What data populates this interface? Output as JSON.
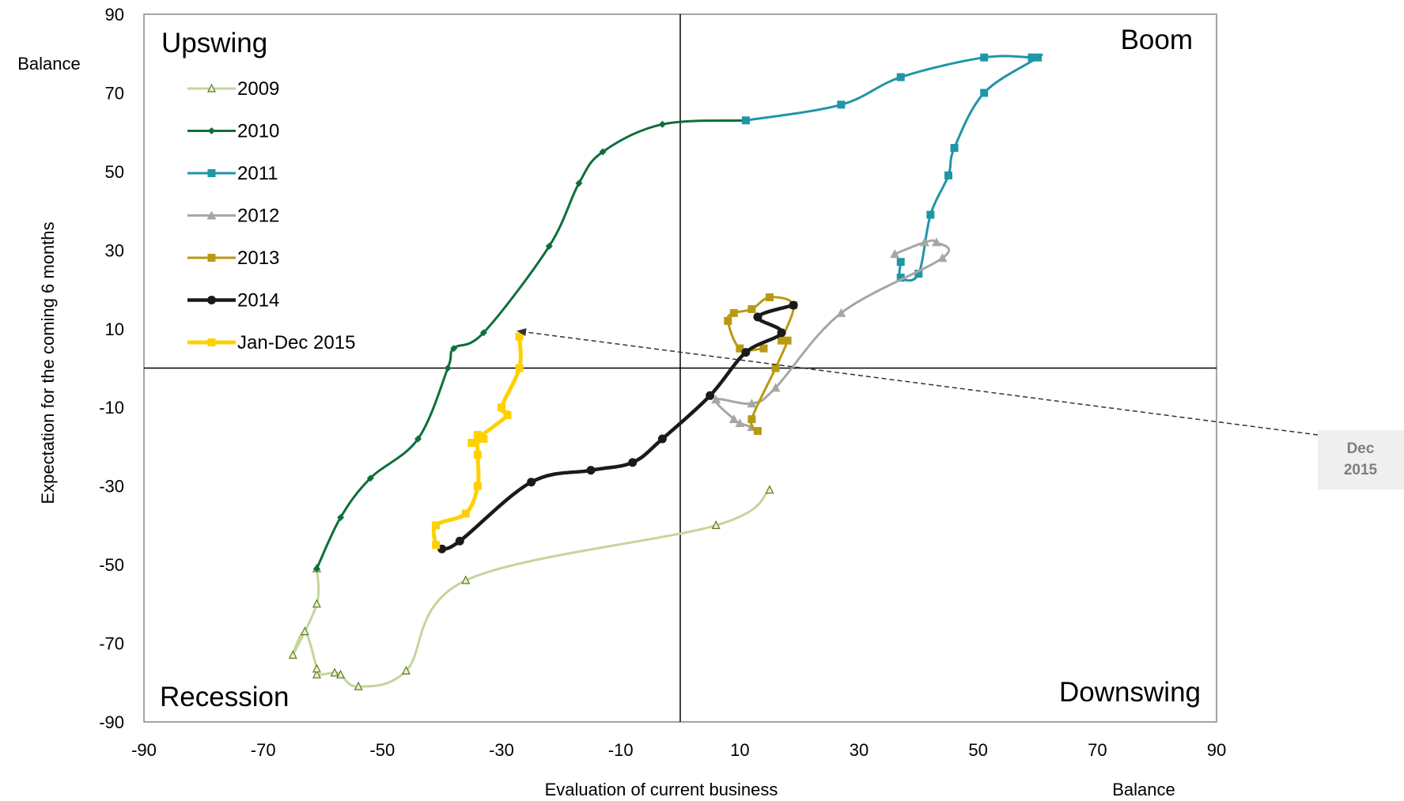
{
  "chart_data": {
    "type": "line",
    "xlabel": "Evaluation  of current business",
    "xunit": "Balance",
    "ylabel": "Expectation for the coming 6 months",
    "yunit": "Balance",
    "xlim": [
      -90,
      90
    ],
    "ylim": [
      -90,
      90
    ],
    "xticks": [
      "-90",
      "-70",
      "-50",
      "-30",
      "-10",
      "10",
      "30",
      "50",
      "70",
      "90"
    ],
    "yticks": [
      "90",
      "70",
      "50",
      "30",
      "10",
      "-10",
      "-30",
      "-50",
      "-70",
      "-90"
    ],
    "quadrants": {
      "top_left": "Upswing",
      "top_right": "Boom",
      "bottom_left": "Recession",
      "bottom_right": "Downswing"
    },
    "annotation": {
      "text_line1": "Dec",
      "text_line2": "2015",
      "points_to": [
        -28,
        9
      ]
    },
    "legend_position": "top-left",
    "series": [
      {
        "name": "2009",
        "color": "#c3d69b",
        "marker": "triangle-open",
        "points": [
          [
            15,
            -31
          ],
          [
            6,
            -40
          ],
          [
            -36,
            -54
          ],
          [
            -46,
            -77
          ],
          [
            -54,
            -81
          ],
          [
            -57,
            -78
          ],
          [
            -58,
            -77.5
          ],
          [
            -61,
            -78
          ],
          [
            -61,
            -76.5
          ],
          [
            -63,
            -67
          ],
          [
            -65,
            -73
          ],
          [
            -61,
            -60
          ],
          [
            -61,
            -51
          ]
        ]
      },
      {
        "name": "2010",
        "color": "#0f6e3a",
        "marker": "diamond",
        "points": [
          [
            -61,
            -51
          ],
          [
            -57,
            -38
          ],
          [
            -52,
            -28
          ],
          [
            -44,
            -18
          ],
          [
            -39,
            0
          ],
          [
            -38,
            5
          ],
          [
            -33,
            9
          ],
          [
            -22,
            31
          ],
          [
            -17,
            47
          ],
          [
            -13,
            55
          ],
          [
            -3,
            62
          ],
          [
            11,
            63
          ]
        ]
      },
      {
        "name": "2011",
        "color": "#1f95a8",
        "marker": "square",
        "points": [
          [
            11,
            63
          ],
          [
            27,
            67
          ],
          [
            37,
            74
          ],
          [
            51,
            79
          ],
          [
            59,
            79
          ],
          [
            60,
            79
          ],
          [
            51,
            70
          ],
          [
            46,
            56
          ],
          [
            45,
            49
          ],
          [
            42,
            39
          ],
          [
            40,
            24
          ],
          [
            37,
            23
          ],
          [
            37,
            27
          ]
        ]
      },
      {
        "name": "2012",
        "color": "#a6a6a6",
        "marker": "triangle",
        "points": [
          [
            36,
            29
          ],
          [
            41,
            32
          ],
          [
            43,
            32
          ],
          [
            44,
            28
          ],
          [
            27,
            14
          ],
          [
            16,
            -5
          ],
          [
            12,
            -9
          ],
          [
            6,
            -8
          ],
          [
            9,
            -13
          ],
          [
            10,
            -14
          ],
          [
            12,
            -15
          ]
        ]
      },
      {
        "name": "2013",
        "color": "#b89a12",
        "marker": "square",
        "points": [
          [
            13,
            -16
          ],
          [
            12,
            -13
          ],
          [
            16,
            0
          ],
          [
            18,
            7
          ],
          [
            17,
            7
          ],
          [
            19,
            16
          ],
          [
            15,
            18
          ],
          [
            12,
            15
          ],
          [
            9,
            14
          ],
          [
            8,
            12
          ],
          [
            10,
            5
          ],
          [
            14,
            5
          ]
        ]
      },
      {
        "name": "2014",
        "color": "#1a1a18",
        "marker": "circle",
        "points": [
          [
            19,
            16
          ],
          [
            13,
            13
          ],
          [
            17,
            9
          ],
          [
            11,
            4
          ],
          [
            5,
            -7
          ],
          [
            -3,
            -18
          ],
          [
            -8,
            -24
          ],
          [
            -15,
            -26
          ],
          [
            -25,
            -29
          ],
          [
            -37,
            -44
          ],
          [
            -40,
            -46
          ]
        ]
      },
      {
        "name": "Jan-Dec 2015",
        "color": "#ffd000",
        "marker": "square",
        "points": [
          [
            -41,
            -45
          ],
          [
            -41,
            -40
          ],
          [
            -36,
            -37
          ],
          [
            -34,
            -30
          ],
          [
            -34,
            -22
          ],
          [
            -34,
            -17
          ],
          [
            -33,
            -18
          ],
          [
            -35,
            -19
          ],
          [
            -29,
            -12
          ],
          [
            -30,
            -10
          ],
          [
            -27,
            0
          ],
          [
            -27,
            8
          ]
        ]
      }
    ]
  }
}
